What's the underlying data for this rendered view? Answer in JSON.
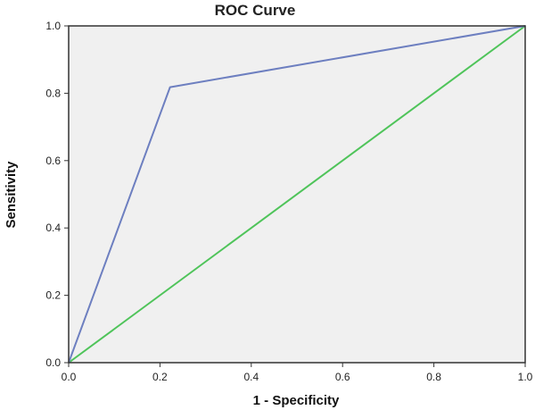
{
  "chart_data": {
    "type": "line",
    "title": "ROC Curve",
    "xlabel": "1 - Specificity",
    "ylabel": "Sensitivity",
    "xlim": [
      0.0,
      1.0
    ],
    "ylim": [
      0.0,
      1.0
    ],
    "xticks": [
      "0.0",
      "0.2",
      "0.4",
      "0.6",
      "0.8",
      "1.0"
    ],
    "yticks": [
      "0.0",
      "0.2",
      "0.4",
      "0.6",
      "0.8",
      "1.0"
    ],
    "xtick_values": [
      0.0,
      0.2,
      0.4,
      0.6,
      0.8,
      1.0
    ],
    "ytick_values": [
      0.0,
      0.2,
      0.4,
      0.6,
      0.8,
      1.0
    ],
    "grid": false,
    "background": "#f0f0f0",
    "series": [
      {
        "color": "#6d7fc0",
        "x": [
          0.0,
          0.222,
          1.0
        ],
        "y": [
          0.0,
          0.818,
          1.0
        ]
      },
      {
        "color": "#4fc45a",
        "x": [
          0.0,
          1.0
        ],
        "y": [
          0.0,
          1.0
        ]
      }
    ]
  }
}
